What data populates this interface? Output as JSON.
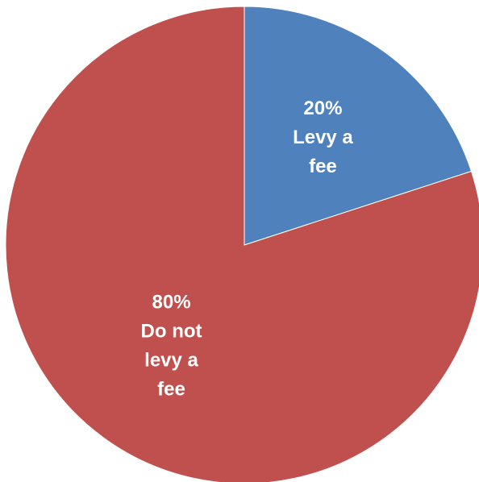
{
  "chart_data": {
    "type": "pie",
    "title": "",
    "categories": [
      "Levy a fee",
      "Do not levy a fee"
    ],
    "values": [
      20,
      80
    ],
    "unit": "%",
    "colors": [
      "#4f81bd",
      "#c0504d"
    ],
    "legend": "none",
    "start_angle_deg": 0,
    "direction": "clockwise",
    "labels": [
      {
        "lines": [
          "20%",
          "Levy a",
          "fee"
        ]
      },
      {
        "lines": [
          "80%",
          "Do not",
          "levy a",
          "fee"
        ]
      }
    ]
  }
}
